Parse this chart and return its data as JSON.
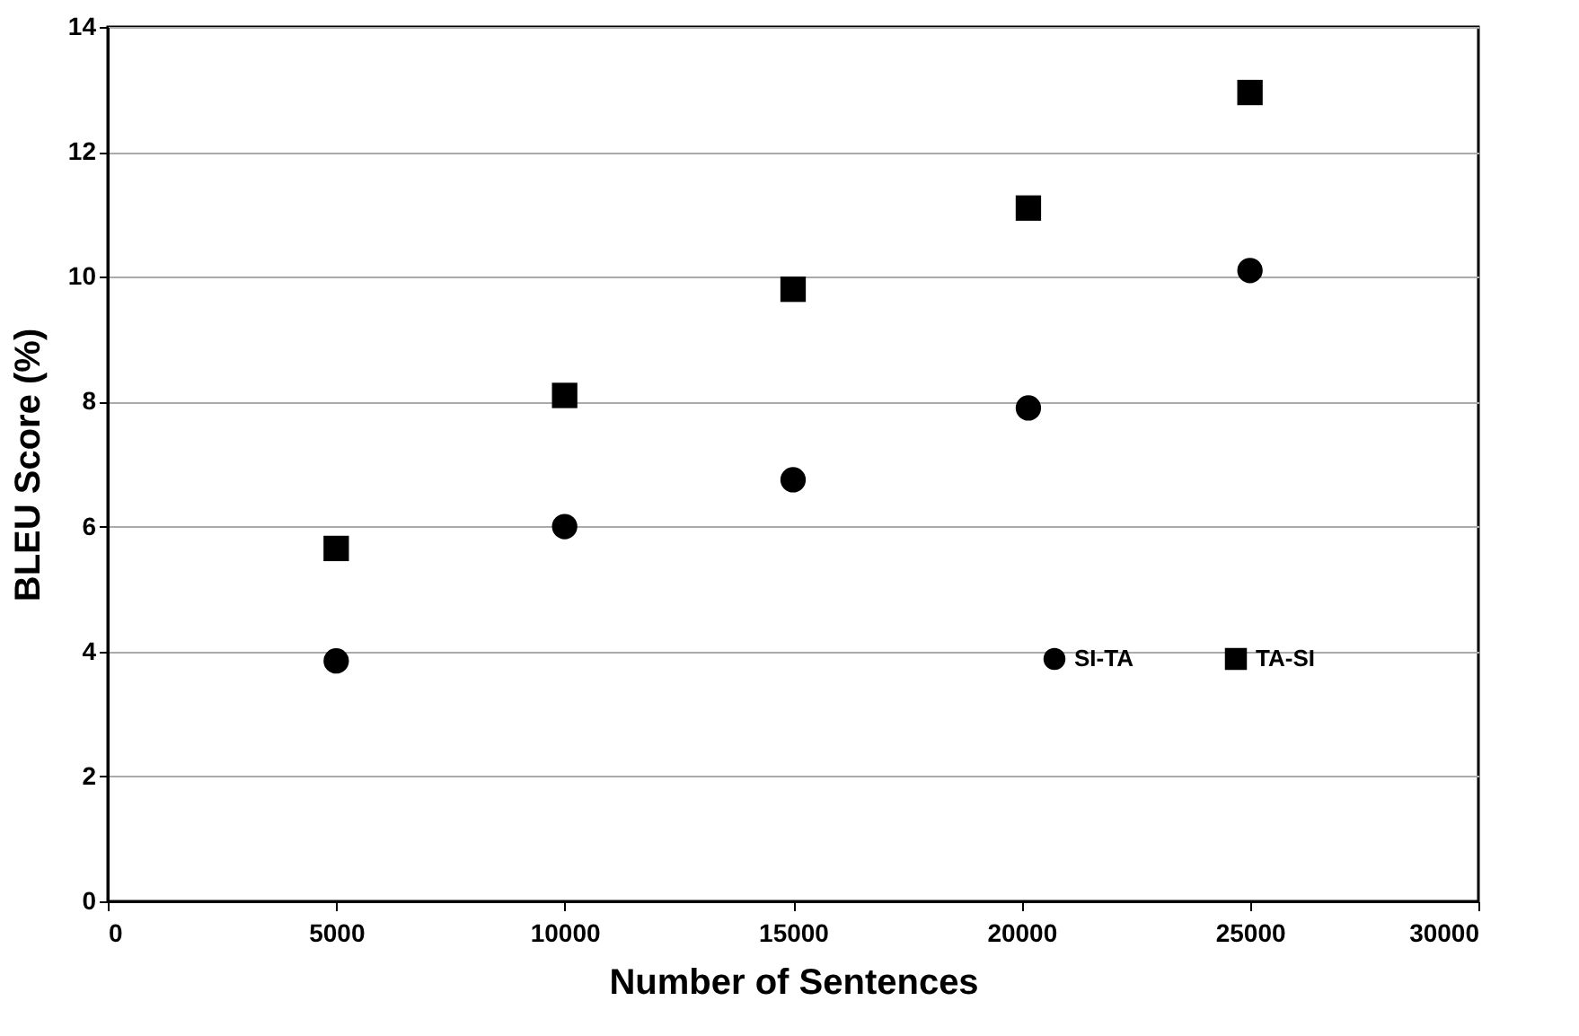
{
  "chart_data": {
    "type": "scatter",
    "xlabel": "Number of Sentences",
    "ylabel": "BLEU Score (%)",
    "x": [
      5000,
      10000,
      15000,
      20150,
      25000
    ],
    "series": [
      {
        "name": "SI-TA",
        "color": "#000000",
        "marker": "circle",
        "values": [
          3.85,
          6.0,
          6.75,
          7.9,
          10.1
        ]
      },
      {
        "name": "TA-SI",
        "color": "#000000",
        "marker": "square",
        "values": [
          5.65,
          8.1,
          9.8,
          11.1,
          12.95
        ]
      }
    ],
    "xlim": [
      0,
      30000
    ],
    "xticks": [
      0,
      5000,
      10000,
      15000,
      20000,
      25000,
      30000
    ],
    "ylim": [
      0,
      14
    ],
    "yticks": [
      0,
      2,
      4,
      6,
      8,
      10,
      12,
      14
    ],
    "grid": "y",
    "legend": "bottom right"
  }
}
